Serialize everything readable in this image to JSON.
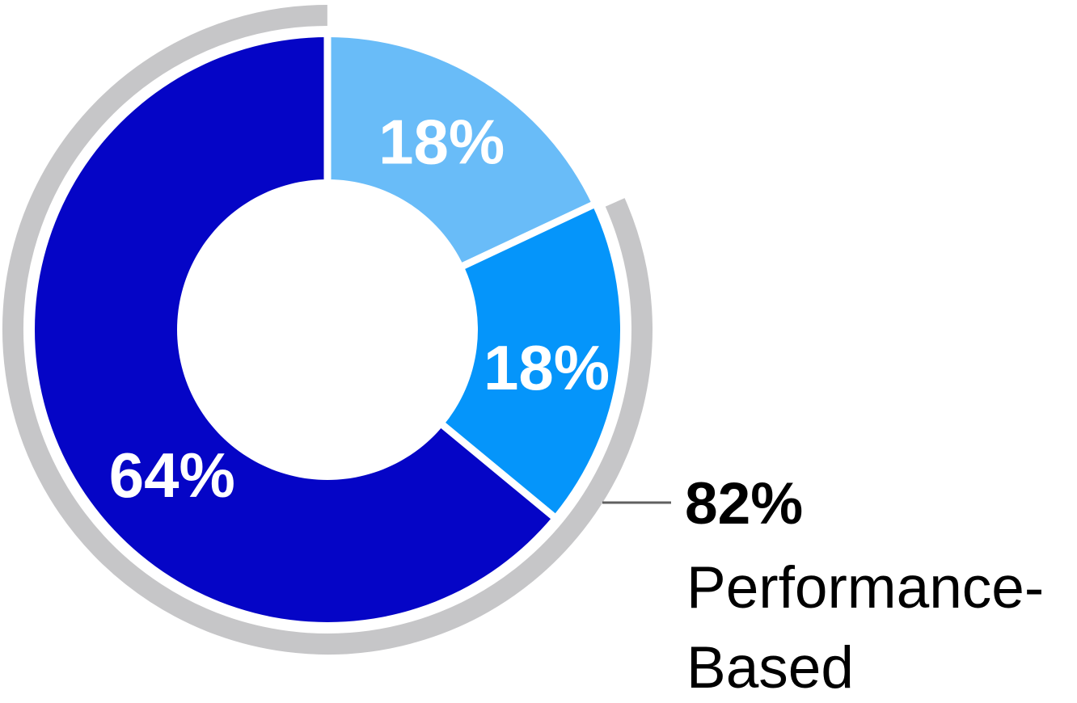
{
  "chart_data": {
    "type": "pie",
    "subtype": "donut",
    "units": "percent",
    "title": "",
    "legend": "none",
    "series": [
      {
        "name": "slice-1",
        "label": "18%",
        "value": 18,
        "color": "#69bcf8"
      },
      {
        "name": "slice-2",
        "label": "18%",
        "value": 18,
        "color": "#0595fa"
      },
      {
        "name": "slice-3",
        "label": "64%",
        "value": 64,
        "color": "#0505c6"
      }
    ],
    "start_angle_deg": 0,
    "direction": "clockwise",
    "donut_hole": true,
    "slice_label_color": "#ffffff",
    "separator_color": "#ffffff",
    "layout_hints": {
      "inner_radius_ratio": 0.514,
      "label_positions": [
        {
          "angle_deg": 31.3,
          "radius_ratio": 0.751
        },
        {
          "angle_deg": 99.8,
          "radius_ratio": 0.76
        },
        {
          "angle_deg": 226.9,
          "radius_ratio": 0.727
        }
      ]
    },
    "highlight_arc": {
      "from_percent": 18,
      "to_percent": 100,
      "total_percent": 82,
      "color": "#c6c6c8"
    },
    "annotation": {
      "value": "82%",
      "lines": [
        "Performance-",
        "Based"
      ],
      "text_color": "#000000",
      "connector_color": "#606060"
    }
  }
}
